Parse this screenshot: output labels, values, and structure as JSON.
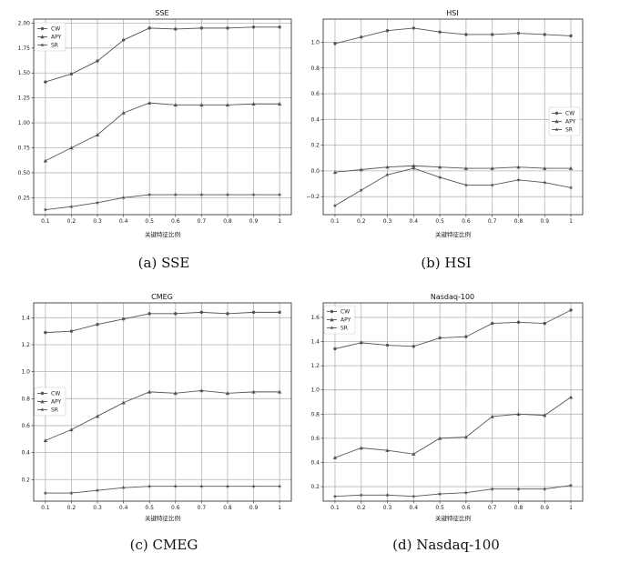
{
  "chart_data": [
    {
      "type": "line",
      "title": "SSE",
      "caption": "(a) SSE",
      "xlabel": "关键特征比例",
      "ylabel": "",
      "categories": [
        "0.1",
        "0.2",
        "0.3",
        "0.4",
        "0.5",
        "0.6",
        "0.7",
        "0.8",
        "0.9",
        "1"
      ],
      "yticks": [
        "0.25",
        "0.50",
        "0.75",
        "1.00",
        "1.25",
        "1.50",
        "1.75",
        "2.00"
      ],
      "ylim": [
        0.08,
        2.04
      ],
      "grid": true,
      "legend_position": "top-left",
      "series": [
        {
          "name": "CW",
          "values": [
            1.41,
            1.49,
            1.62,
            1.83,
            1.95,
            1.94,
            1.95,
            1.95,
            1.96,
            1.96
          ]
        },
        {
          "name": "APY",
          "values": [
            0.62,
            0.75,
            0.88,
            1.1,
            1.2,
            1.18,
            1.18,
            1.18,
            1.19,
            1.19
          ]
        },
        {
          "name": "SR",
          "values": [
            0.13,
            0.16,
            0.2,
            0.25,
            0.28,
            0.28,
            0.28,
            0.28,
            0.28,
            0.28
          ]
        }
      ]
    },
    {
      "type": "line",
      "title": "HSI",
      "caption": "(b) HSI",
      "xlabel": "关键特征比例",
      "ylabel": "",
      "categories": [
        "0.1",
        "0.2",
        "0.3",
        "0.4",
        "0.5",
        "0.6",
        "0.7",
        "0.8",
        "0.9",
        "1"
      ],
      "yticks": [
        "−0.2",
        "0.0",
        "0.2",
        "0.4",
        "0.6",
        "0.8",
        "1.0"
      ],
      "ylim": [
        -0.34,
        1.18
      ],
      "grid": true,
      "legend_position": "center-right",
      "series": [
        {
          "name": "CW",
          "values": [
            0.99,
            1.04,
            1.09,
            1.11,
            1.08,
            1.06,
            1.06,
            1.07,
            1.06,
            1.05
          ]
        },
        {
          "name": "APY",
          "values": [
            -0.01,
            0.01,
            0.03,
            0.04,
            0.03,
            0.02,
            0.02,
            0.03,
            0.02,
            0.02
          ]
        },
        {
          "name": "SR",
          "values": [
            -0.27,
            -0.15,
            -0.03,
            0.02,
            -0.05,
            -0.11,
            -0.11,
            -0.07,
            -0.09,
            -0.13
          ]
        }
      ]
    },
    {
      "type": "line",
      "title": "CMEG",
      "caption": "(c) CMEG",
      "xlabel": "关键特征比例",
      "ylabel": "",
      "categories": [
        "0.1",
        "0.2",
        "0.3",
        "0.4",
        "0.5",
        "0.6",
        "0.7",
        "0.8",
        "0.9",
        "1"
      ],
      "yticks": [
        "0.2",
        "0.4",
        "0.6",
        "0.8",
        "1.0",
        "1.2",
        "1.4"
      ],
      "ylim": [
        0.04,
        1.51
      ],
      "grid": true,
      "legend_position": "center-left",
      "series": [
        {
          "name": "CW",
          "values": [
            1.29,
            1.3,
            1.35,
            1.39,
            1.43,
            1.43,
            1.44,
            1.43,
            1.44,
            1.44
          ]
        },
        {
          "name": "APY",
          "values": [
            0.49,
            0.57,
            0.67,
            0.77,
            0.85,
            0.84,
            0.86,
            0.84,
            0.85,
            0.85
          ]
        },
        {
          "name": "SR",
          "values": [
            0.1,
            0.1,
            0.12,
            0.14,
            0.15,
            0.15,
            0.15,
            0.15,
            0.15,
            0.15
          ]
        }
      ]
    },
    {
      "type": "line",
      "title": "Nasdaq-100",
      "caption": "(d) Nasdaq-100",
      "xlabel": "关键特征比例",
      "ylabel": "",
      "categories": [
        "0.1",
        "0.2",
        "0.3",
        "0.4",
        "0.5",
        "0.6",
        "0.7",
        "0.8",
        "0.9",
        "1"
      ],
      "yticks": [
        "0.2",
        "0.4",
        "0.6",
        "0.8",
        "1.0",
        "1.2",
        "1.4",
        "1.6"
      ],
      "ylim": [
        0.08,
        1.72
      ],
      "grid": true,
      "legend_position": "top-left",
      "series": [
        {
          "name": "CW",
          "values": [
            1.34,
            1.39,
            1.37,
            1.36,
            1.43,
            1.44,
            1.55,
            1.56,
            1.55,
            1.66
          ]
        },
        {
          "name": "APY",
          "values": [
            0.44,
            0.52,
            0.5,
            0.47,
            0.6,
            0.61,
            0.78,
            0.8,
            0.79,
            0.94
          ]
        },
        {
          "name": "SR",
          "values": [
            0.12,
            0.13,
            0.13,
            0.12,
            0.14,
            0.15,
            0.18,
            0.18,
            0.18,
            0.21
          ]
        }
      ]
    }
  ],
  "colors": {
    "grid": "#b3b3b3",
    "line": "#555555",
    "axis": "#222222",
    "background": "#ffffff"
  },
  "markers": {
    "CW": "circle",
    "APY": "triangle",
    "SR": "star"
  }
}
